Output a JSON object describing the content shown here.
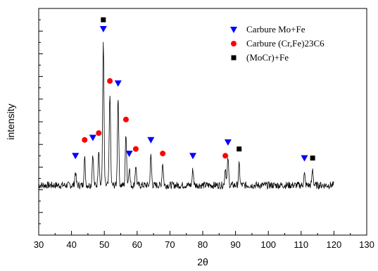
{
  "chart_data": {
    "type": "line",
    "xlabel": "2θ",
    "ylabel": "intensity",
    "xlim": [
      30,
      130
    ],
    "xticks": [
      30,
      40,
      50,
      60,
      70,
      80,
      90,
      100,
      110,
      120,
      130
    ],
    "ylim": [
      0,
      100
    ],
    "yticks_labeled": false,
    "grid": false,
    "legend_position": "top-right",
    "line_color": "#000000",
    "series": [
      {
        "type": "line",
        "x_range": [
          30,
          120
        ],
        "baseline": 22,
        "peaks": [
          {
            "x": 41.2,
            "y": 28
          },
          {
            "x": 44.0,
            "y": 34
          },
          {
            "x": 46.5,
            "y": 36
          },
          {
            "x": 48.3,
            "y": 38
          },
          {
            "x": 49.7,
            "y": 85
          },
          {
            "x": 51.7,
            "y": 63
          },
          {
            "x": 54.2,
            "y": 61
          },
          {
            "x": 56.6,
            "y": 45
          },
          {
            "x": 57.6,
            "y": 30
          },
          {
            "x": 59.6,
            "y": 31
          },
          {
            "x": 64.2,
            "y": 35
          },
          {
            "x": 67.8,
            "y": 32
          },
          {
            "x": 77.0,
            "y": 29
          },
          {
            "x": 86.9,
            "y": 30
          },
          {
            "x": 87.7,
            "y": 34
          },
          {
            "x": 91.1,
            "y": 31
          },
          {
            "x": 111.0,
            "y": 27
          },
          {
            "x": 113.5,
            "y": 29
          }
        ]
      },
      {
        "name": "Carbure Mo+Fe",
        "type": "scatter",
        "marker": "triangle-down",
        "color": "#0000FF",
        "points": [
          [
            41.2,
            35
          ],
          [
            46.5,
            43
          ],
          [
            49.7,
            91
          ],
          [
            54.2,
            67
          ],
          [
            57.6,
            36
          ],
          [
            64.2,
            42
          ],
          [
            77.0,
            35
          ],
          [
            87.7,
            41
          ],
          [
            111.0,
            34
          ]
        ]
      },
      {
        "name": "Carbure (Cr,Fe)23C6",
        "type": "scatter",
        "marker": "circle",
        "color": "#FF0000",
        "points": [
          [
            44.0,
            42
          ],
          [
            48.3,
            45
          ],
          [
            51.7,
            68
          ],
          [
            56.6,
            51
          ],
          [
            59.6,
            38
          ],
          [
            67.8,
            36
          ],
          [
            86.9,
            35
          ]
        ]
      },
      {
        "name": "(MoCr)+Fe",
        "type": "scatter",
        "marker": "square",
        "color": "#000000",
        "points": [
          [
            49.7,
            95
          ],
          [
            91.1,
            38
          ],
          [
            113.5,
            34
          ]
        ]
      }
    ]
  }
}
